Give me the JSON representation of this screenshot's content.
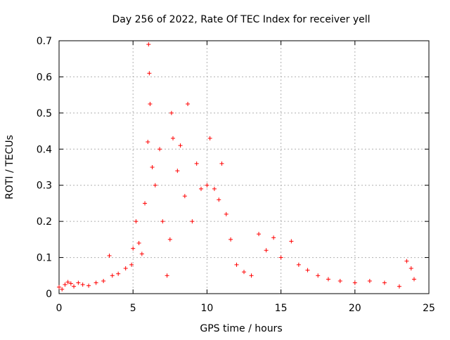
{
  "chart_data": {
    "type": "scatter",
    "title": "Day 256 of 2022, Rate Of TEC Index for receiver yell",
    "xlabel": "GPS time / hours",
    "ylabel": "ROTI / TECUs",
    "xlim": [
      0,
      25
    ],
    "ylim": [
      0,
      0.7
    ],
    "xticks": [
      0,
      5,
      10,
      15,
      20,
      25
    ],
    "yticks": [
      0,
      0.1,
      0.2,
      0.3,
      0.4,
      0.5,
      0.6,
      0.7
    ],
    "xtick_labels": [
      "0",
      "5",
      "10",
      "15",
      "20",
      "25"
    ],
    "ytick_labels": [
      "0",
      "0.1",
      "0.2",
      "0.3",
      "0.4",
      "0.5",
      "0.6",
      "0.7"
    ],
    "grid": true,
    "marker": "+",
    "color": "#ff0000",
    "series": [
      {
        "points": [
          [
            0.0,
            0.018
          ],
          [
            0.2,
            0.012
          ],
          [
            0.4,
            0.025
          ],
          [
            0.6,
            0.032
          ],
          [
            0.8,
            0.028
          ],
          [
            1.0,
            0.02
          ],
          [
            1.3,
            0.03
          ],
          [
            1.6,
            0.025
          ],
          [
            2.0,
            0.022
          ],
          [
            2.5,
            0.03
          ],
          [
            3.0,
            0.035
          ],
          [
            3.4,
            0.105
          ],
          [
            3.6,
            0.05
          ],
          [
            4.0,
            0.055
          ],
          [
            4.5,
            0.07
          ],
          [
            4.9,
            0.08
          ],
          [
            5.0,
            0.125
          ],
          [
            5.2,
            0.2
          ],
          [
            5.4,
            0.14
          ],
          [
            5.6,
            0.11
          ],
          [
            5.8,
            0.25
          ],
          [
            6.0,
            0.42
          ],
          [
            6.05,
            0.69
          ],
          [
            6.1,
            0.61
          ],
          [
            6.15,
            0.525
          ],
          [
            6.3,
            0.35
          ],
          [
            6.5,
            0.3
          ],
          [
            6.8,
            0.4
          ],
          [
            7.0,
            0.2
          ],
          [
            7.3,
            0.05
          ],
          [
            7.5,
            0.15
          ],
          [
            7.6,
            0.5
          ],
          [
            7.7,
            0.43
          ],
          [
            8.0,
            0.34
          ],
          [
            8.2,
            0.41
          ],
          [
            8.5,
            0.27
          ],
          [
            8.7,
            0.525
          ],
          [
            9.0,
            0.2
          ],
          [
            9.3,
            0.36
          ],
          [
            9.6,
            0.29
          ],
          [
            10.0,
            0.3
          ],
          [
            10.2,
            0.43
          ],
          [
            10.5,
            0.29
          ],
          [
            10.8,
            0.26
          ],
          [
            11.0,
            0.36
          ],
          [
            11.3,
            0.22
          ],
          [
            11.6,
            0.15
          ],
          [
            12.0,
            0.08
          ],
          [
            12.5,
            0.06
          ],
          [
            13.0,
            0.05
          ],
          [
            13.5,
            0.165
          ],
          [
            14.0,
            0.12
          ],
          [
            14.5,
            0.155
          ],
          [
            15.0,
            0.1
          ],
          [
            15.7,
            0.145
          ],
          [
            16.2,
            0.08
          ],
          [
            16.8,
            0.065
          ],
          [
            17.5,
            0.05
          ],
          [
            18.2,
            0.04
          ],
          [
            19.0,
            0.035
          ],
          [
            20.0,
            0.03
          ],
          [
            21.0,
            0.035
          ],
          [
            22.0,
            0.03
          ],
          [
            23.0,
            0.02
          ],
          [
            23.5,
            0.09
          ],
          [
            23.8,
            0.07
          ],
          [
            24.0,
            0.04
          ]
        ]
      }
    ]
  }
}
